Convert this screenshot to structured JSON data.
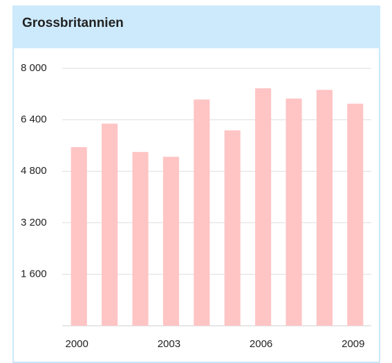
{
  "chart_data": {
    "type": "bar",
    "title": "Grossbritannien",
    "categories": [
      "2000",
      null,
      null,
      "2003",
      null,
      null,
      "2006",
      null,
      null,
      "2009"
    ],
    "values": [
      5550,
      6280,
      5400,
      5250,
      7030,
      6070,
      7380,
      7060,
      7330,
      6900
    ],
    "color": "#ffc4c4",
    "ylim": [
      0,
      8000
    ],
    "yticks": [
      {
        "value": 1600,
        "label": "1 600"
      },
      {
        "value": 3200,
        "label": "3 200"
      },
      {
        "value": 4800,
        "label": "4 800"
      },
      {
        "value": 6400,
        "label": "6 400"
      },
      {
        "value": 8000,
        "label": "8 000"
      }
    ],
    "grid": true
  }
}
